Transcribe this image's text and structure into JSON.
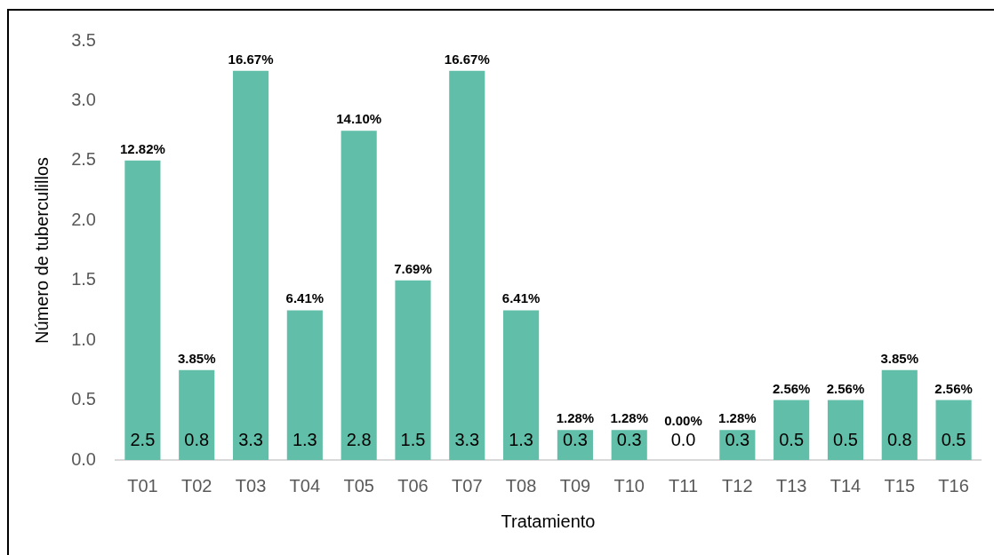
{
  "chart_data": {
    "type": "bar",
    "categories": [
      "T01",
      "T02",
      "T03",
      "T04",
      "T05",
      "T06",
      "T07",
      "T08",
      "T09",
      "T10",
      "T11",
      "T12",
      "T13",
      "T14",
      "T15",
      "T16"
    ],
    "values": [
      2.5,
      0.75,
      3.25,
      1.25,
      2.75,
      1.5,
      3.25,
      1.25,
      0.25,
      0.25,
      0,
      0.25,
      0.5,
      0.5,
      0.75,
      0.5
    ],
    "color": "#61bea8",
    "value_labels": [
      "2.5",
      "0.8",
      "3.3",
      "1.3",
      "2.8",
      "1.5",
      "3.3",
      "1.3",
      "0.3",
      "0.3",
      "0.0",
      "0.3",
      "0.5",
      "0.5",
      "0.8",
      "0.5"
    ],
    "annotations": [
      {
        "text": "12.82%",
        "x": "T01",
        "y": 2.5
      },
      {
        "text": "3.85%",
        "x": "T02",
        "y": 0.75
      },
      {
        "text": "16.67%",
        "x": "T03",
        "y": 3.25
      },
      {
        "text": "6.41%",
        "x": "T04",
        "y": 1.25
      },
      {
        "text": "14.10%",
        "x": "T05",
        "y": 2.75
      },
      {
        "text": "7.69%",
        "x": "T06",
        "y": 1.5
      },
      {
        "text": "16.67%",
        "x": "T07",
        "y": 3.25
      },
      {
        "text": "6.41%",
        "x": "T08",
        "y": 1.25
      },
      {
        "text": "1.28%",
        "x": "T09",
        "y": 0.25
      },
      {
        "text": "1.28%",
        "x": "T10",
        "y": 0.25
      },
      {
        "text": "0.00%",
        "x": "T11",
        "y": 0
      },
      {
        "text": "1.28%",
        "x": "T12",
        "y": 0.25
      },
      {
        "text": "2.56%",
        "x": "T13",
        "y": 0.5
      },
      {
        "text": "2.56%",
        "x": "T14",
        "y": 0.5
      },
      {
        "text": "3.85%",
        "x": "T15",
        "y": 0.75
      },
      {
        "text": "2.56%",
        "x": "T16",
        "y": 0.5
      }
    ],
    "xlabel": "Tratamiento",
    "ylabel": "Número de tuberculillos",
    "ylim": [
      0,
      3.5
    ],
    "yticks": [
      {
        "value": 0,
        "label": "0.0"
      },
      0.5,
      {
        "value": 1,
        "label": "1.0"
      },
      1.5,
      {
        "value": 2,
        "label": "2.0"
      },
      2.5,
      {
        "value": 3,
        "label": "3.0"
      },
      3.5
    ]
  }
}
